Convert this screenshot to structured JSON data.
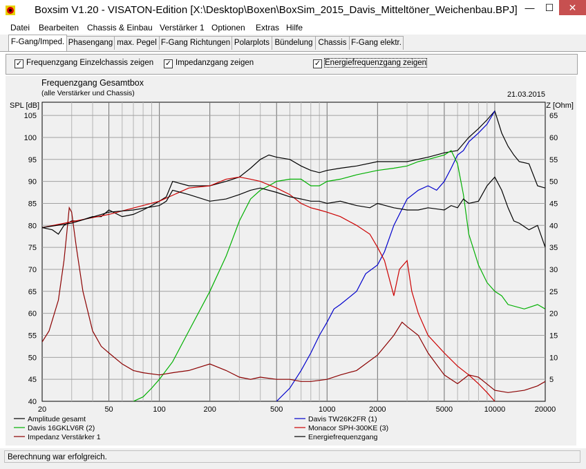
{
  "window": {
    "title": "Boxsim V1.20 - VISATON-Edition [X:\\Desktop\\Boxen\\BoxSim_2015_Davis_Mitteltöner_Weichenbau.BPJ]"
  },
  "controls": {
    "minimize": "—",
    "maximize": "☐",
    "close": "✕"
  },
  "menu": [
    "Datei",
    "Bearbeiten",
    "Chassis & Einbau",
    "Verstärker 1",
    "Optionen",
    "Extras",
    "Hilfe"
  ],
  "tabs": [
    "F-Gang/Imped.",
    "Phasengang",
    "max. Pegel",
    "F-Gang Richtungen",
    "Polarplots",
    "Bündelung",
    "Chassis",
    "F-Gang elektr."
  ],
  "options": [
    {
      "label": "Frequenzgang Einzelchassis zeigen",
      "checked": true
    },
    {
      "label": "Impedanzgang zeigen",
      "checked": true
    },
    {
      "label": "Energiefrequenzgang zeigen",
      "checked": true
    }
  ],
  "status": "Berechnung war erfolgreich.",
  "chart_data": {
    "type": "line",
    "title": "Frequenzgang Gesamtbox",
    "subtitle": "(alle Verstärker und Chassis)",
    "date": "21.03.2015",
    "ylabel": "SPL [dB]",
    "y2label": "Z [Ohm]",
    "xscale": "log",
    "xlim": [
      20,
      20000
    ],
    "ylim": [
      40,
      108
    ],
    "y2lim": [
      0,
      68
    ],
    "xticks": [
      20,
      50,
      100,
      200,
      500,
      1000,
      2000,
      5000,
      10000,
      20000
    ],
    "xtick_labels": [
      "20",
      "50",
      "100",
      "200",
      "500",
      "1000",
      "2000",
      "5000",
      "10000",
      "20000"
    ],
    "yticks": [
      40,
      45,
      50,
      55,
      60,
      65,
      70,
      75,
      80,
      85,
      90,
      95,
      100,
      105
    ],
    "y2ticks": [
      5,
      10,
      15,
      20,
      25,
      30,
      35,
      40,
      45,
      50,
      55,
      60,
      65
    ],
    "grid": true,
    "series": [
      {
        "name": "Amplitude gesamt",
        "color": "#000000",
        "axis": "left",
        "x": [
          20,
          23,
          25,
          27,
          30,
          33,
          40,
          45,
          50,
          60,
          70,
          80,
          90,
          100,
          110,
          120,
          150,
          200,
          250,
          300,
          350,
          400,
          450,
          500,
          600,
          700,
          800,
          900,
          1000,
          1200,
          1500,
          2000,
          2500,
          3000,
          4000,
          5000,
          6000,
          7000,
          8000,
          9000,
          10000,
          11000,
          12000,
          13000,
          14000,
          16000,
          18000,
          20000
        ],
        "y": [
          79.5,
          79,
          78,
          80,
          81,
          81,
          82,
          82,
          83.5,
          82,
          82.5,
          83.5,
          84.5,
          85.5,
          86.5,
          90,
          89,
          89,
          90,
          91,
          93,
          95,
          96,
          95.5,
          95,
          93.5,
          92.5,
          92,
          92.5,
          93,
          93.5,
          94.5,
          94.5,
          94.5,
          95.5,
          96.5,
          97,
          100,
          102,
          104,
          106,
          101,
          98,
          96,
          94.5,
          94,
          89,
          88.5
        ]
      },
      {
        "name": "Davis TW26K2FR  (1)",
        "color": "#0000cc",
        "axis": "left",
        "x": [
          500,
          600,
          700,
          800,
          900,
          1000,
          1100,
          1200,
          1500,
          1700,
          2000,
          2200,
          2500,
          3000,
          3500,
          4000,
          4500,
          5000,
          5500,
          6000,
          6500,
          7000,
          8000,
          9000,
          10000
        ],
        "y": [
          40,
          43,
          47,
          51,
          55,
          58,
          61,
          62,
          65,
          69,
          71,
          74,
          80,
          86,
          88,
          89,
          88,
          90,
          93,
          96,
          97,
          99,
          101,
          103,
          106
        ]
      },
      {
        "name": "Davis 16GKLV6R  (2)",
        "color": "#00b000",
        "axis": "left",
        "x": [
          70,
          80,
          90,
          100,
          120,
          150,
          200,
          250,
          300,
          350,
          400,
          450,
          500,
          600,
          700,
          800,
          900,
          1000,
          1200,
          1500,
          2000,
          2500,
          3000,
          3500,
          4000,
          5000,
          5500,
          6000,
          6500,
          7000,
          8000,
          9000,
          10000,
          11000,
          12000,
          15000,
          18000,
          20000
        ],
        "y": [
          40,
          41,
          43,
          45,
          49,
          56,
          65,
          73,
          81,
          86,
          88,
          89,
          90,
          90.5,
          90.5,
          89,
          89,
          90,
          90.5,
          91.5,
          92.5,
          93,
          93.5,
          94.5,
          95,
          96,
          97,
          94,
          87,
          78,
          71,
          67,
          65,
          64,
          62,
          61,
          62,
          61
        ]
      },
      {
        "name": "Monacor SPH-300KE  (3)",
        "color": "#cc0000",
        "axis": "left",
        "x": [
          20,
          50,
          100,
          150,
          200,
          250,
          300,
          350,
          400,
          500,
          600,
          700,
          800,
          900,
          1000,
          1200,
          1500,
          1800,
          2000,
          2200,
          2500,
          2700,
          3000,
          3200,
          3500,
          4000,
          5000,
          6000,
          7000,
          8000,
          9000,
          10000
        ],
        "y": [
          79.5,
          82.5,
          85.5,
          88.5,
          89,
          90.5,
          91,
          90.5,
          90,
          88.5,
          87,
          85,
          84,
          83.5,
          83,
          82,
          80,
          78,
          75,
          72,
          64,
          70,
          72,
          65,
          60,
          55,
          51,
          48,
          46,
          44,
          42,
          40
        ]
      },
      {
        "name": "Impedanz Verstärker 1",
        "color": "#8b0000",
        "axis": "right",
        "x": [
          20,
          22,
          25,
          27,
          28,
          29,
          30,
          32,
          35,
          40,
          45,
          50,
          60,
          70,
          80,
          100,
          120,
          150,
          200,
          250,
          300,
          350,
          400,
          500,
          600,
          700,
          800,
          1000,
          1200,
          1500,
          2000,
          2500,
          2800,
          3000,
          3500,
          4000,
          5000,
          6000,
          7000,
          8000,
          10000,
          12000,
          15000,
          18000,
          20000
        ],
        "y": [
          13.5,
          16,
          23,
          32,
          38,
          44,
          43,
          35,
          25,
          16,
          12.5,
          11,
          8.5,
          7,
          6.5,
          6,
          6.5,
          7,
          8.5,
          7,
          5.5,
          5,
          5.5,
          5,
          5,
          4.5,
          4.5,
          5,
          6,
          7,
          10.5,
          15,
          18,
          17,
          15,
          11,
          6,
          4,
          6,
          5.5,
          2.5,
          2,
          2.5,
          3.5,
          4.5
        ]
      },
      {
        "name": "Energiefrequenzgang",
        "color": "#000000",
        "axis": "left",
        "x": [
          20,
          30,
          50,
          70,
          100,
          110,
          120,
          150,
          200,
          250,
          300,
          350,
          400,
          500,
          600,
          700,
          800,
          900,
          1000,
          1200,
          1500,
          1800,
          2000,
          2500,
          3000,
          3500,
          4000,
          5000,
          5500,
          6000,
          6500,
          7000,
          8000,
          9000,
          10000,
          11000,
          12000,
          13000,
          14000,
          16000,
          18000,
          20000
        ],
        "y": [
          79.5,
          80.5,
          83,
          83.5,
          84.5,
          85.5,
          88,
          87,
          85.5,
          86,
          87,
          88,
          88.5,
          87.5,
          86.5,
          86,
          85.5,
          85.5,
          85,
          85.5,
          84.5,
          84,
          85,
          84,
          83.5,
          83.5,
          84,
          83.5,
          84.5,
          84,
          86,
          85,
          85.5,
          89,
          91,
          88,
          84,
          81,
          80.5,
          79,
          80,
          75
        ]
      }
    ]
  }
}
